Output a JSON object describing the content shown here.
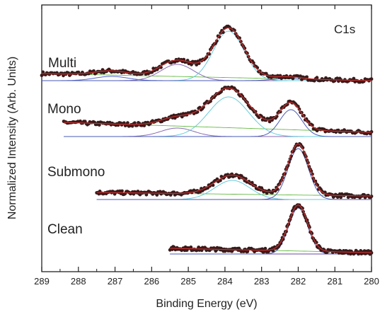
{
  "chart_data": {
    "type": "line",
    "title": "",
    "panel_label": "C1s",
    "xlabel": "Binding Energy (eV)",
    "ylabel": "Normalized Intensity (Arb. Units)",
    "xlim": [
      289,
      280
    ],
    "x_reversed": true,
    "x_ticks": [
      289,
      288,
      287,
      286,
      285,
      284,
      283,
      282,
      281,
      280
    ],
    "y_ticks_shown": false,
    "legend": "none",
    "colors": {
      "data": "#3a1a1a",
      "envelope": "#cc3333",
      "background": "#66bb44",
      "peak_282": "#4a5ab8",
      "peak_284": "#66ccdd",
      "peak_285": "#8a6ab5",
      "peak_287": "#5566cc",
      "baseline": "#6a4aaa"
    },
    "series": [
      {
        "name": "Multi",
        "x_range": [
          289,
          280
        ],
        "components": [
          {
            "center": 287.1,
            "height": 0.06,
            "width": 0.45,
            "color_key": "peak_287"
          },
          {
            "center": 285.3,
            "height": 0.23,
            "width": 0.45,
            "color_key": "peak_285"
          },
          {
            "center": 283.9,
            "height": 0.7,
            "width": 0.42,
            "color_key": "peak_284"
          },
          {
            "center": 282.3,
            "height": 0.03,
            "width": 0.4,
            "color_key": "peak_282"
          }
        ],
        "background": [
          0.1,
          0.0
        ]
      },
      {
        "name": "Mono",
        "x_range": [
          288.4,
          280
        ],
        "components": [
          {
            "center": 285.3,
            "height": 0.12,
            "width": 0.45,
            "color_key": "peak_285"
          },
          {
            "center": 283.9,
            "height": 0.56,
            "width": 0.55,
            "color_key": "peak_284"
          },
          {
            "center": 282.2,
            "height": 0.38,
            "width": 0.3,
            "color_key": "peak_282"
          }
        ],
        "background": [
          0.2,
          0.06
        ]
      },
      {
        "name": "Submono",
        "x_range": [
          287.5,
          280
        ],
        "components": [
          {
            "center": 283.8,
            "height": 0.27,
            "width": 0.48,
            "color_key": "peak_284"
          },
          {
            "center": 282.0,
            "height": 0.72,
            "width": 0.28,
            "color_key": "peak_282"
          }
        ],
        "background": [
          0.1,
          0.05
        ]
      },
      {
        "name": "Clean",
        "x_range": [
          285.5,
          280
        ],
        "components": [
          {
            "center": 282.0,
            "height": 0.65,
            "width": 0.26,
            "color_key": "peak_282"
          }
        ],
        "background": [
          0.08,
          0.02
        ]
      }
    ]
  }
}
